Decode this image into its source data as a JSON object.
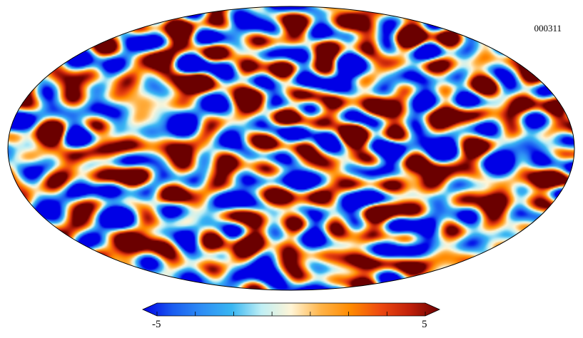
{
  "map": {
    "id_label": "000311",
    "projection": "mollweide",
    "background": "#ffffff",
    "outline_color": "#000000"
  },
  "colorbar": {
    "min_label": "-5",
    "max_label": "5",
    "min": -5,
    "max": 5,
    "ticks": 8,
    "colors": [
      "#0000e6",
      "#1a5cf0",
      "#2e8ef5",
      "#39b6f2",
      "#bfeff5",
      "#fff5d6",
      "#ffb347",
      "#ff8a00",
      "#ee4a10",
      "#c0200a",
      "#6b0000"
    ]
  }
}
